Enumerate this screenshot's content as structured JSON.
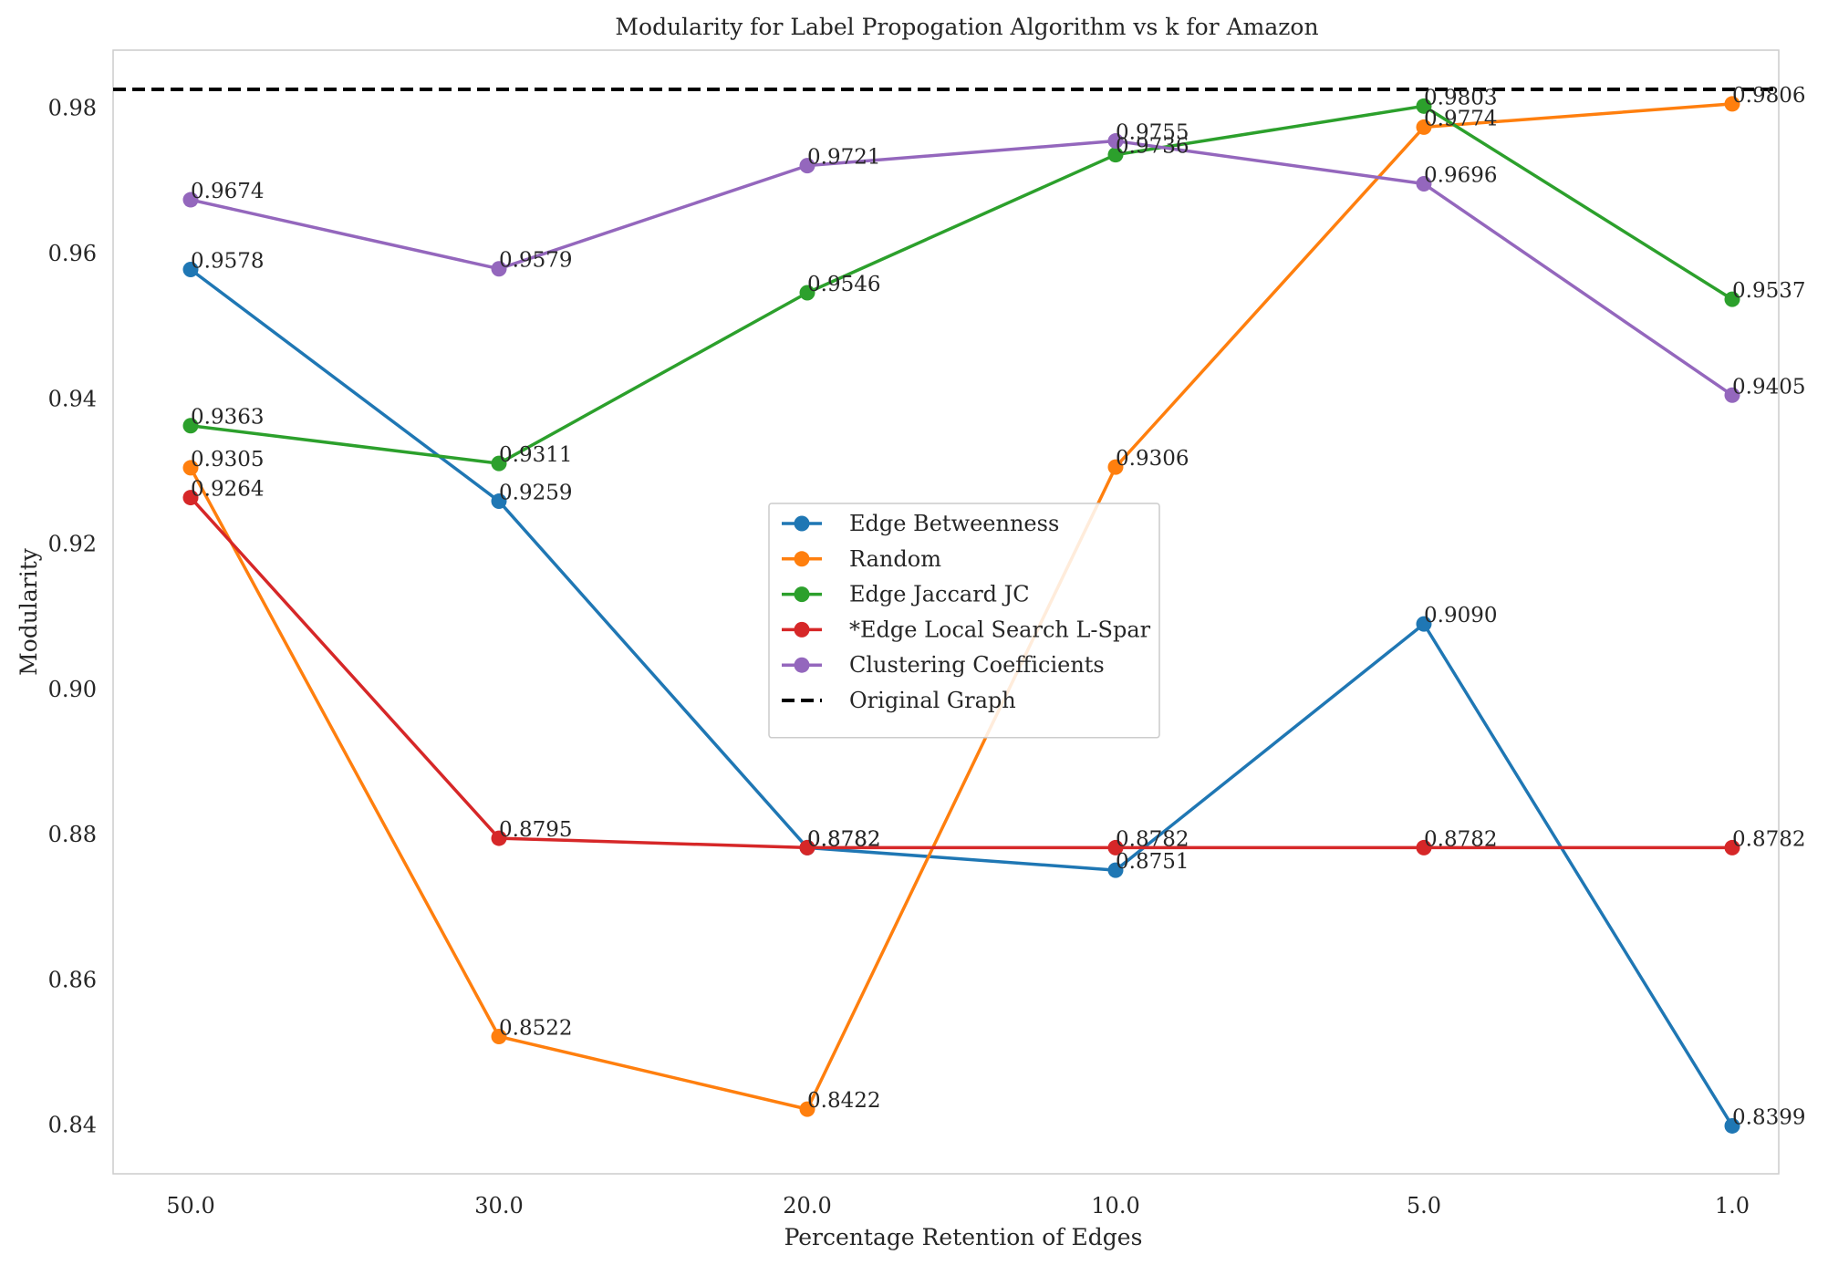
{
  "chart_data": {
    "type": "line",
    "title": "Modularity for Label Propogation Algorithm vs k for Amazon",
    "xlabel": "Percentage Retention of Edges",
    "ylabel": "Modularity",
    "categories": [
      "50.0",
      "30.0",
      "20.0",
      "10.0",
      "5.0",
      "1.0"
    ],
    "ylim": [
      0.8333,
      0.988
    ],
    "yticks": [
      0.84,
      0.86,
      0.88,
      0.9,
      0.92,
      0.94,
      0.96,
      0.98
    ],
    "ytick_labels": [
      "0.84",
      "0.86",
      "0.88",
      "0.90",
      "0.92",
      "0.94",
      "0.96",
      "0.98"
    ],
    "grid": false,
    "legend_position": "center",
    "series": [
      {
        "name": "Edge Betweenness",
        "color": "#1f77b4",
        "values": [
          0.9578,
          0.9259,
          0.8782,
          0.8751,
          0.909,
          0.8399
        ],
        "labels": [
          "0.9578",
          "0.9259",
          "0.8782",
          "0.8751",
          "0.9090",
          "0.8399"
        ]
      },
      {
        "name": "Random",
        "color": "#ff7f0e",
        "values": [
          0.9305,
          0.8522,
          0.8422,
          0.9306,
          0.9774,
          0.9806
        ],
        "labels": [
          "0.9305",
          "0.8522",
          "0.8422",
          "0.9306",
          "0.9774",
          "0.9806"
        ]
      },
      {
        "name": "Edge Jaccard JC",
        "color": "#2ca02c",
        "values": [
          0.9363,
          0.9311,
          0.9546,
          0.9736,
          0.9803,
          0.9537
        ],
        "labels": [
          "0.9363",
          "0.9311",
          "0.9546",
          "0.9736",
          "0.9803",
          "0.9537"
        ]
      },
      {
        "name": "*Edge Local Search L-Spar",
        "color": "#d62728",
        "values": [
          0.9264,
          0.8795,
          0.8782,
          0.8782,
          0.8782,
          0.8782
        ],
        "labels": [
          "0.9264",
          "0.8795",
          "0.8782",
          "0.8782",
          "0.8782",
          "0.8782"
        ]
      },
      {
        "name": "Clustering Coefficients",
        "color": "#9467bd",
        "values": [
          0.9674,
          0.9579,
          0.9721,
          0.9755,
          0.9696,
          0.9405
        ],
        "labels": [
          "0.9674",
          "0.9579",
          "0.9721",
          "0.9755",
          "0.9696",
          "0.9405"
        ]
      }
    ],
    "reference_line": {
      "name": "Original Graph",
      "value": 0.9826,
      "color": "#000000",
      "style": "dashed"
    }
  }
}
